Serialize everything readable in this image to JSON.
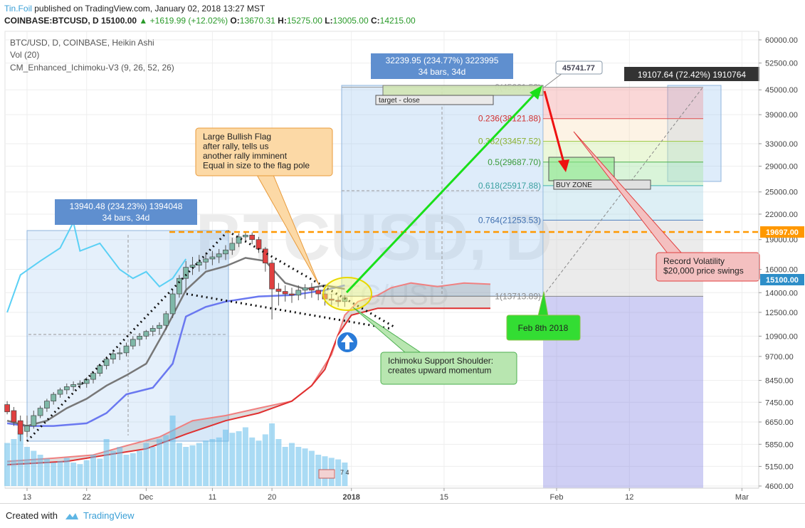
{
  "header": {
    "author": "Tin.Foil",
    "published": "published on TradingView.com, January 02, 2018 13:27 MST",
    "symbol": "COINBASE:BTCUSD, D",
    "last": "15100.00",
    "change": "+1619.99 (+12.02%)",
    "open_label": "O:",
    "open": "13670.31",
    "high_label": "H:",
    "high": "15275.00",
    "low_label": "L:",
    "low": "13005.00",
    "close_label": "C:",
    "close": "14215.00"
  },
  "legend": {
    "main": "BTC/USD, D, COINBASE, Heikin Ashi",
    "vol": "Vol (20)",
    "ichimoku": "CM_Enhanced_Ichimoku-V3 (9, 26, 52, 26)"
  },
  "watermark": {
    "big": "BTCUSD, D",
    "small": "BTC/USD"
  },
  "footer": {
    "created": "Created with",
    "brand": "TradingView"
  },
  "colors": {
    "up": "#7fb8a8",
    "down": "#e04040",
    "fib_red": "#f3c6c6",
    "green_arrow": "#19e019",
    "red_arrow": "#ee1111",
    "orange_line": "#ff9800",
    "price_tag": "#2e8ec8",
    "callout_orange": "#fcd9a6",
    "callout_green": "#b8e6b0"
  },
  "annotations": {
    "measure1": {
      "line1": "13940.48 (234.23%) 1394048",
      "line2": "34 bars, 34d"
    },
    "measure2": {
      "line1": "32239.95 (234.77%) 3223995",
      "line2": "34 bars, 34d"
    },
    "measure3": {
      "line1": "19107.64 (72.42%) 1910764"
    },
    "target_label": "45741.77",
    "flag_callout": [
      "Large Bullish Flag",
      "after rally, tells us",
      "another rally imminent",
      "Equal in size to the flag pole"
    ],
    "ichimoku_callout": [
      "Ichimoku Support Shoulder:",
      "creates upward momentum"
    ],
    "volatility_callout": [
      "Record Volatility",
      "$20,000 price swings"
    ],
    "date_callout": "Feb 8th 2018",
    "target_close": "target - close",
    "buy_zone": "BUY ZONE",
    "fib": [
      {
        "label": "0(45661.53)",
        "value": 45661.53
      },
      {
        "label": "0.236(38121.88)",
        "value": 38121.88
      },
      {
        "label": "0.382(33457.52)",
        "value": 33457.52
      },
      {
        "label": "0.5(29687.70)",
        "value": 29687.7
      },
      {
        "label": "0.618(25917.88)",
        "value": 25917.88
      },
      {
        "label": "0.764(21253.53)",
        "value": 21253.53
      },
      {
        "label": "1(13713.89)",
        "value": 13713.89
      }
    ],
    "price_tag_orange": "19697.00",
    "price_tag_blue": "15100.00",
    "misc_marks": "7 4"
  },
  "chart_data": {
    "type": "candlestick",
    "title": "BTC/USD, D, COINBASE, Heikin Ashi",
    "yscale": "log",
    "ylim": [
      4600,
      62000
    ],
    "y_ticks": [
      60000,
      52500,
      45000,
      39000,
      33000,
      29000,
      25000,
      22000,
      19000,
      16000,
      14000,
      12500,
      10900,
      9700,
      8450,
      7450,
      6650,
      5850,
      5150,
      4600
    ],
    "x_ticks": [
      "13",
      "22",
      "Dec",
      "11",
      "20",
      "2018",
      "15",
      "Feb",
      "12",
      "Mar",
      "12"
    ],
    "x_tick_days": [
      0,
      9,
      18,
      28,
      37,
      49,
      63,
      80,
      91,
      108,
      120
    ],
    "candles": [
      {
        "d": -3,
        "o": 7350,
        "h": 7500,
        "l": 6950,
        "c": 7050
      },
      {
        "d": -2,
        "o": 7100,
        "h": 7250,
        "l": 6500,
        "c": 6650
      },
      {
        "d": -1,
        "o": 6700,
        "h": 6900,
        "l": 5950,
        "c": 6200
      },
      {
        "d": 0,
        "o": 6300,
        "h": 6900,
        "l": 6100,
        "c": 6500
      },
      {
        "d": 1,
        "o": 6500,
        "h": 7100,
        "l": 6400,
        "c": 6900
      },
      {
        "d": 2,
        "o": 6900,
        "h": 7300,
        "l": 6800,
        "c": 7200
      },
      {
        "d": 3,
        "o": 7200,
        "h": 7600,
        "l": 7050,
        "c": 7500
      },
      {
        "d": 4,
        "o": 7500,
        "h": 7900,
        "l": 7350,
        "c": 7800
      },
      {
        "d": 5,
        "o": 7800,
        "h": 8100,
        "l": 7650,
        "c": 8000
      },
      {
        "d": 6,
        "o": 8000,
        "h": 8300,
        "l": 7800,
        "c": 8150
      },
      {
        "d": 7,
        "o": 8150,
        "h": 8400,
        "l": 7950,
        "c": 8250
      },
      {
        "d": 8,
        "o": 8250,
        "h": 8450,
        "l": 8050,
        "c": 8300
      },
      {
        "d": 9,
        "o": 8300,
        "h": 8600,
        "l": 8100,
        "c": 8500
      },
      {
        "d": 10,
        "o": 8500,
        "h": 8900,
        "l": 8300,
        "c": 8800
      },
      {
        "d": 11,
        "o": 8800,
        "h": 9300,
        "l": 8650,
        "c": 9200
      },
      {
        "d": 12,
        "o": 9200,
        "h": 9700,
        "l": 9000,
        "c": 9550
      },
      {
        "d": 13,
        "o": 9550,
        "h": 10000,
        "l": 9300,
        "c": 9850
      },
      {
        "d": 14,
        "o": 9850,
        "h": 10200,
        "l": 9500,
        "c": 9900
      },
      {
        "d": 15,
        "o": 9900,
        "h": 10500,
        "l": 9700,
        "c": 10300
      },
      {
        "d": 16,
        "o": 10300,
        "h": 10900,
        "l": 10100,
        "c": 10700
      },
      {
        "d": 17,
        "o": 10700,
        "h": 11100,
        "l": 10300,
        "c": 10900
      },
      {
        "d": 18,
        "o": 10900,
        "h": 11300,
        "l": 10700,
        "c": 11200
      },
      {
        "d": 19,
        "o": 11200,
        "h": 11600,
        "l": 10900,
        "c": 11400
      },
      {
        "d": 20,
        "o": 11400,
        "h": 11800,
        "l": 11000,
        "c": 11600
      },
      {
        "d": 21,
        "o": 11600,
        "h": 12600,
        "l": 11300,
        "c": 12400
      },
      {
        "d": 22,
        "o": 12400,
        "h": 14200,
        "l": 12100,
        "c": 13900
      },
      {
        "d": 23,
        "o": 13900,
        "h": 15500,
        "l": 13600,
        "c": 15200
      },
      {
        "d": 24,
        "o": 15200,
        "h": 16800,
        "l": 14000,
        "c": 16200
      },
      {
        "d": 25,
        "o": 16200,
        "h": 17200,
        "l": 15500,
        "c": 16400
      },
      {
        "d": 26,
        "o": 16400,
        "h": 17400,
        "l": 15800,
        "c": 16700
      },
      {
        "d": 27,
        "o": 16700,
        "h": 17600,
        "l": 16000,
        "c": 17000
      },
      {
        "d": 28,
        "o": 17000,
        "h": 17800,
        "l": 16400,
        "c": 17200
      },
      {
        "d": 29,
        "o": 17200,
        "h": 18000,
        "l": 16600,
        "c": 17500
      },
      {
        "d": 30,
        "o": 17500,
        "h": 18400,
        "l": 16900,
        "c": 17900
      },
      {
        "d": 31,
        "o": 17900,
        "h": 19200,
        "l": 17400,
        "c": 18600
      },
      {
        "d": 32,
        "o": 18600,
        "h": 19700,
        "l": 18200,
        "c": 19300
      },
      {
        "d": 33,
        "o": 19300,
        "h": 19900,
        "l": 18800,
        "c": 19500
      },
      {
        "d": 34,
        "o": 19500,
        "h": 19800,
        "l": 18500,
        "c": 19000
      },
      {
        "d": 35,
        "o": 19000,
        "h": 19300,
        "l": 17600,
        "c": 18000
      },
      {
        "d": 36,
        "o": 18000,
        "h": 18200,
        "l": 15800,
        "c": 16600
      },
      {
        "d": 37,
        "o": 16600,
        "h": 16900,
        "l": 12000,
        "c": 14300
      },
      {
        "d": 38,
        "o": 14300,
        "h": 14800,
        "l": 13000,
        "c": 14100
      },
      {
        "d": 39,
        "o": 14100,
        "h": 14600,
        "l": 13300,
        "c": 13900
      },
      {
        "d": 40,
        "o": 13900,
        "h": 14400,
        "l": 13200,
        "c": 13800
      },
      {
        "d": 41,
        "o": 13800,
        "h": 14600,
        "l": 13400,
        "c": 14200
      },
      {
        "d": 42,
        "o": 14200,
        "h": 14700,
        "l": 13500,
        "c": 14400
      },
      {
        "d": 43,
        "o": 14400,
        "h": 14800,
        "l": 13600,
        "c": 14200
      },
      {
        "d": 44,
        "o": 14200,
        "h": 14500,
        "l": 13400,
        "c": 13900
      },
      {
        "d": 45,
        "o": 13900,
        "h": 14200,
        "l": 13000,
        "c": 13500
      },
      {
        "d": 46,
        "o": 13500,
        "h": 13900,
        "l": 13000,
        "c": 13400
      },
      {
        "d": 47,
        "o": 13400,
        "h": 13700,
        "l": 12900,
        "c": 13300
      },
      {
        "d": 48,
        "o": 13300,
        "h": 13800,
        "l": 12900,
        "c": 13600
      }
    ],
    "tenkan": [
      [
        -3,
        6700
      ],
      [
        0,
        6500
      ],
      [
        3,
        6700
      ],
      [
        6,
        7200
      ],
      [
        9,
        7600
      ],
      [
        12,
        8200
      ],
      [
        15,
        8700
      ],
      [
        18,
        9300
      ],
      [
        21,
        11400
      ],
      [
        24,
        14200
      ],
      [
        27,
        15800
      ],
      [
        30,
        16300
      ],
      [
        33,
        17100
      ],
      [
        36,
        16800
      ],
      [
        39,
        14800
      ],
      [
        42,
        14300
      ],
      [
        45,
        14600
      ],
      [
        48,
        14300
      ]
    ],
    "kijun": [
      [
        -3,
        6600
      ],
      [
        0,
        6500
      ],
      [
        4,
        6500
      ],
      [
        9,
        6600
      ],
      [
        12,
        7000
      ],
      [
        15,
        7800
      ],
      [
        19,
        8100
      ],
      [
        22,
        9300
      ],
      [
        24,
        12200
      ],
      [
        27,
        12900
      ],
      [
        30,
        13300
      ],
      [
        35,
        13700
      ],
      [
        40,
        13800
      ],
      [
        45,
        14200
      ],
      [
        48,
        14600
      ]
    ],
    "chikou": [
      [
        -3,
        12500
      ],
      [
        -1,
        15500
      ],
      [
        2,
        16800
      ],
      [
        5,
        18100
      ],
      [
        7,
        21000
      ],
      [
        8,
        17800
      ],
      [
        11,
        18600
      ],
      [
        14,
        16000
      ],
      [
        16,
        15200
      ],
      [
        18,
        15800
      ],
      [
        20,
        14500
      ],
      [
        22,
        15200
      ],
      [
        24,
        17000
      ]
    ],
    "senkou_a": [
      [
        -3,
        5300
      ],
      [
        4,
        5400
      ],
      [
        10,
        5500
      ],
      [
        15,
        5800
      ],
      [
        20,
        6100
      ],
      [
        25,
        6700
      ],
      [
        30,
        6900
      ],
      [
        35,
        7200
      ],
      [
        40,
        7500
      ],
      [
        43,
        8200
      ],
      [
        46,
        9800
      ],
      [
        48,
        12300
      ],
      [
        50,
        13300
      ],
      [
        53,
        13800
      ],
      [
        55,
        14400
      ],
      [
        58,
        14800
      ],
      [
        62,
        14500
      ],
      [
        66,
        14800
      ],
      [
        70,
        14700
      ]
    ],
    "senkou_b": [
      [
        -3,
        5200
      ],
      [
        6,
        5300
      ],
      [
        12,
        5500
      ],
      [
        18,
        5700
      ],
      [
        24,
        6200
      ],
      [
        30,
        6700
      ],
      [
        35,
        7000
      ],
      [
        40,
        7500
      ],
      [
        43,
        8200
      ],
      [
        45,
        9000
      ],
      [
        47,
        11000
      ],
      [
        49,
        12300
      ],
      [
        53,
        12800
      ],
      [
        60,
        12800
      ],
      [
        70,
        12800
      ]
    ],
    "volume_days": [
      -3,
      -2,
      -1,
      0,
      1,
      2,
      3,
      4,
      5,
      6,
      7,
      8,
      9,
      10,
      11,
      12,
      13,
      14,
      15,
      16,
      17,
      18,
      19,
      20,
      21,
      22,
      23,
      24,
      25,
      26,
      27,
      28,
      29,
      30,
      31,
      32,
      33,
      34,
      35,
      36,
      37,
      38,
      39,
      40,
      41,
      42,
      43,
      44,
      45,
      46,
      47,
      48
    ],
    "volume_rel": [
      0.55,
      0.6,
      0.7,
      0.5,
      0.45,
      0.4,
      0.35,
      0.3,
      0.32,
      0.36,
      0.3,
      0.28,
      0.33,
      0.4,
      0.35,
      0.6,
      0.45,
      0.5,
      0.4,
      0.42,
      0.45,
      0.55,
      0.5,
      0.6,
      0.65,
      0.9,
      0.55,
      0.5,
      0.52,
      0.55,
      0.58,
      0.6,
      0.62,
      0.72,
      0.68,
      0.7,
      0.75,
      0.62,
      0.58,
      0.66,
      0.8,
      0.6,
      0.5,
      0.55,
      0.5,
      0.48,
      0.45,
      0.4,
      0.38,
      0.36,
      0.34,
      0.3
    ]
  }
}
